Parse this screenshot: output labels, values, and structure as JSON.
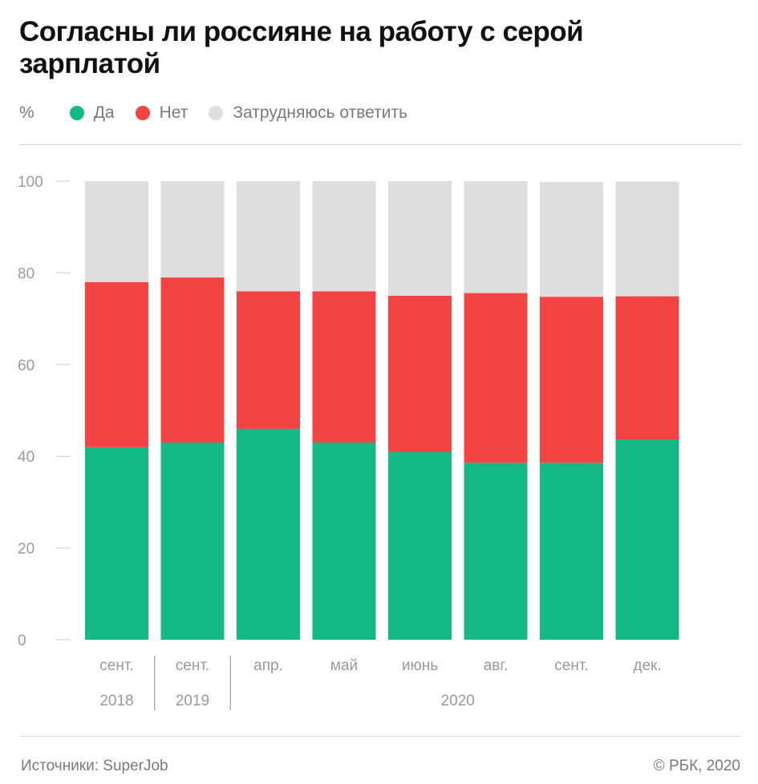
{
  "title": "Согласны ли россияне на работу с серой зарплатой",
  "legend": {
    "unit": "%",
    "items": [
      {
        "label": "Да",
        "color": "#14b884"
      },
      {
        "label": "Нет",
        "color": "#f44343"
      },
      {
        "label": "Затрудняюсь ответить",
        "color": "#dedede"
      }
    ]
  },
  "footer": {
    "source": "Источники: SuperJob",
    "copyright": "© РБК, 2020"
  },
  "chart_data": {
    "type": "bar",
    "stacked": true,
    "categories": [
      "сент.",
      "сент.",
      "апр.",
      "май",
      "июнь",
      "авг.",
      "сент.",
      "дек."
    ],
    "year_groups": [
      {
        "label": "2018",
        "count": 1
      },
      {
        "label": "2019",
        "count": 1
      },
      {
        "label": "2020",
        "count": 6
      }
    ],
    "series": [
      {
        "name": "Да",
        "color": "#14b884",
        "values": [
          42,
          43,
          46,
          43,
          41,
          38.6,
          38.6,
          43.7
        ]
      },
      {
        "name": "Нет",
        "color": "#f44343",
        "values": [
          36,
          36,
          30,
          33,
          34,
          37,
          36.2,
          31.2
        ]
      },
      {
        "name": "Затрудняюсь ответить",
        "color": "#dedede",
        "values": [
          22,
          21,
          24,
          24,
          25,
          24.4,
          25,
          25
        ]
      }
    ],
    "ylim": [
      0,
      100
    ],
    "yticks": [
      0,
      20,
      40,
      60,
      80,
      100
    ],
    "grid": false
  }
}
